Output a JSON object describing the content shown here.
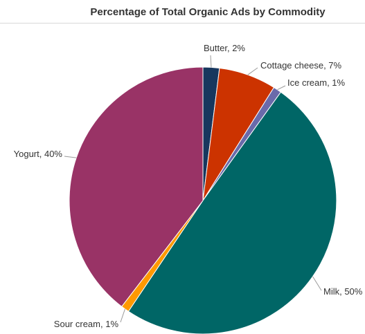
{
  "chart_data": {
    "type": "pie",
    "title": "Percentage of Total Organic Ads by Commodity",
    "slices": [
      {
        "label": "Butter",
        "display": "Butter, 2%",
        "value": 2,
        "color": "#17375e"
      },
      {
        "label": "Cottage cheese",
        "display": "Cottage cheese, 7%",
        "value": 7,
        "color": "#cc3300"
      },
      {
        "label": "Ice cream",
        "display": "Ice cream, 1%",
        "value": 1,
        "color": "#6a6aaa"
      },
      {
        "label": "Milk",
        "display": "Milk, 50%",
        "value": 50,
        "color": "#006666"
      },
      {
        "label": "Sour cream",
        "display": "Sour cream, 1%",
        "value": 1,
        "color": "#ff9900"
      },
      {
        "label": "Yogurt",
        "display": "Yogurt, 40%",
        "value": 40,
        "color": "#993366"
      }
    ]
  }
}
